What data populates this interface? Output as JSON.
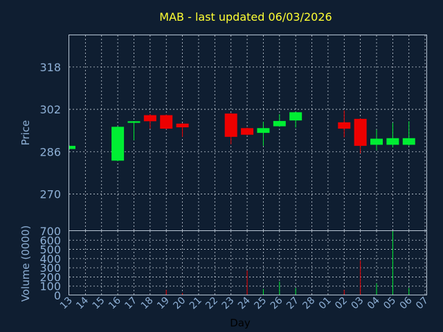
{
  "chart_data": {
    "type": "candlestick",
    "title": "MAB - last updated 06/03/2026",
    "xlabel": "Day",
    "price_ylabel": "Price",
    "volume_ylabel": "Volume (0000)",
    "x_tick_labels": [
      "13",
      "14",
      "15",
      "16",
      "17",
      "18",
      "19",
      "20",
      "21",
      "22",
      "23",
      "24",
      "25",
      "26",
      "27",
      "28",
      "01",
      "02",
      "03",
      "04",
      "05",
      "06",
      "07"
    ],
    "price_ylim": [
      256,
      330
    ],
    "price_ticks": [
      270,
      286,
      302,
      318
    ],
    "volume_ylim": [
      0,
      700
    ],
    "volume_ticks": [
      0,
      100,
      200,
      300,
      400,
      500,
      600,
      700
    ],
    "colors": {
      "up": "#00ee33",
      "down": "#ee0000",
      "wick_up": "#00ee33",
      "wick_down": "#ee0000"
    },
    "candles": [
      {
        "x": 0,
        "open": 287.0,
        "close": 288.2,
        "high": 288.4,
        "low": 286.8,
        "volume": 1
      },
      {
        "x": 3,
        "open": 282.6,
        "close": 295.4,
        "high": 295.6,
        "low": 282.4,
        "volume": 8
      },
      {
        "x": 4,
        "open": 296.9,
        "close": 297.5,
        "high": 297.6,
        "low": 290.3,
        "volume": 5
      },
      {
        "x": 5,
        "open": 299.8,
        "close": 297.5,
        "high": 300.2,
        "low": 294.7,
        "volume": 4
      },
      {
        "x": 6,
        "open": 299.8,
        "close": 294.7,
        "high": 300.0,
        "low": 294.5,
        "volume": 60
      },
      {
        "x": 7,
        "open": 296.6,
        "close": 295.2,
        "high": 296.8,
        "low": 291.6,
        "volume": 25
      },
      {
        "x": 10,
        "open": 300.4,
        "close": 291.6,
        "high": 300.6,
        "low": 288.8,
        "volume": 6
      },
      {
        "x": 11,
        "open": 294.9,
        "close": 292.4,
        "high": 295.1,
        "low": 292.2,
        "volume": 270
      },
      {
        "x": 12,
        "open": 293.1,
        "close": 294.9,
        "high": 297.3,
        "low": 288.2,
        "volume": 70
      },
      {
        "x": 13,
        "open": 295.6,
        "close": 297.6,
        "high": 300.2,
        "low": 295.4,
        "volume": 150
      },
      {
        "x": 14,
        "open": 297.8,
        "close": 300.9,
        "high": 301.1,
        "low": 295.1,
        "volume": 80
      },
      {
        "x": 17,
        "open": 297.1,
        "close": 294.7,
        "high": 301.6,
        "low": 291.4,
        "volume": 60
      },
      {
        "x": 18,
        "open": 298.4,
        "close": 288.2,
        "high": 298.6,
        "low": 285.3,
        "volume": 380
      },
      {
        "x": 19,
        "open": 288.6,
        "close": 290.9,
        "high": 294.3,
        "low": 286.5,
        "volume": 130
      },
      {
        "x": 20,
        "open": 288.6,
        "close": 291.1,
        "high": 296.9,
        "low": 287.6,
        "volume": 710
      },
      {
        "x": 21,
        "open": 288.6,
        "close": 291.1,
        "high": 297.5,
        "low": 288.2,
        "volume": 80
      }
    ]
  }
}
